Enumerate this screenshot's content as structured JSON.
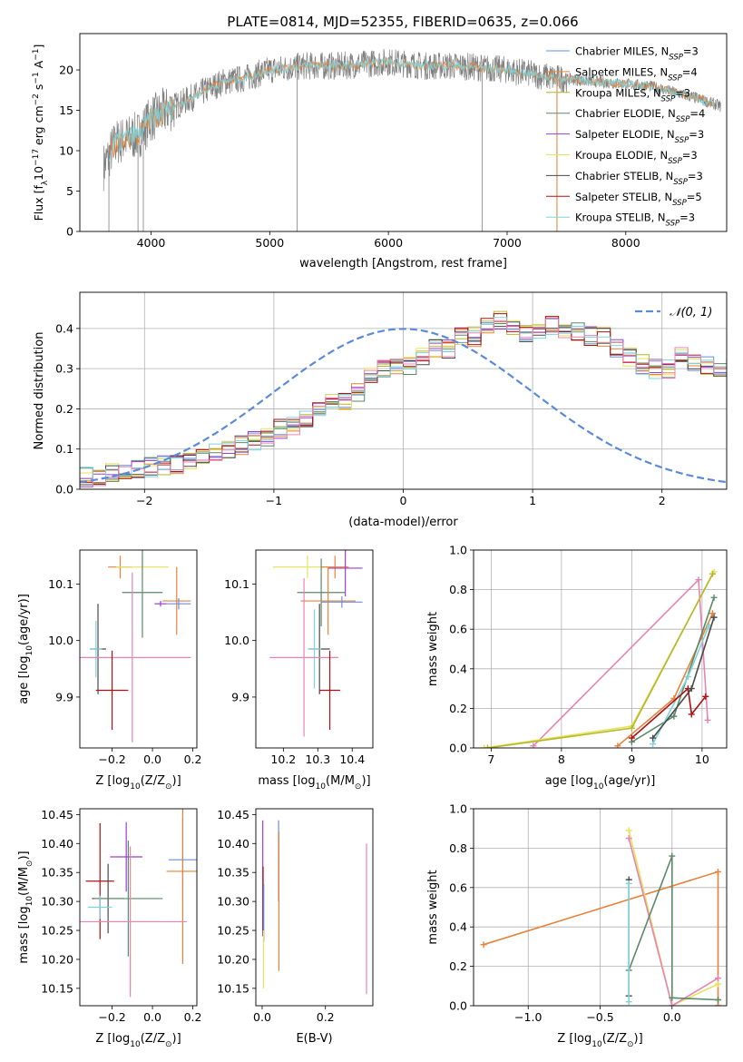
{
  "figure_title": "PLATE=0814, MJD=52355, FIBERID=0635, z=0.066",
  "colors": {
    "chabrier_miles": "#6b8fd6",
    "salpeter_miles": "#e8823a",
    "kroupa_miles": "#b6b62a",
    "chabrier_elodie": "#5a8a68",
    "salpeter_elodie": "#9b3fd0",
    "kroupa_elodie": "#e6e35a",
    "chabrier_stelib": "#4a4a4a",
    "salpeter_stelib": "#b01010",
    "kroupa_stelib": "#7ed3dc",
    "pink": "#e884b4",
    "data_spectrum": "#808080",
    "normal_curve": "#5b8bd8"
  },
  "chart_data": [
    {
      "id": "spectrum",
      "type": "line",
      "xlabel": "wavelength [Angstrom, rest frame]",
      "ylabel": "Flux [f_λ10^-17 erg cm^-2 s^-1 A^-1]",
      "xlim": [
        3400,
        8850
      ],
      "ylim": [
        0,
        24.5
      ],
      "xticks": [
        "4000",
        "5000",
        "6000",
        "7000",
        "8000"
      ],
      "yticks": [
        "0",
        "5",
        "10",
        "15",
        "20"
      ],
      "legend": [
        {
          "label": "Chabrier MILES, N",
          "sub": "SSP",
          "suffix": "=3",
          "color_key": "chabrier_miles"
        },
        {
          "label": "Salpeter MILES, N",
          "sub": "SSP",
          "suffix": "=4",
          "color_key": "salpeter_miles"
        },
        {
          "label": "Kroupa MILES, N",
          "sub": "SSP",
          "suffix": "=3",
          "color_key": "kroupa_miles"
        },
        {
          "label": "Chabrier ELODIE, N",
          "sub": "SSP",
          "suffix": "=4",
          "color_key": "chabrier_elodie"
        },
        {
          "label": "Salpeter ELODIE, N",
          "sub": "SSP",
          "suffix": "=3",
          "color_key": "salpeter_elodie"
        },
        {
          "label": "Kroupa ELODIE, N",
          "sub": "SSP",
          "suffix": "=3",
          "color_key": "kroupa_elodie"
        },
        {
          "label": "Chabrier STELIB, N",
          "sub": "SSP",
          "suffix": "=3",
          "color_key": "chabrier_stelib"
        },
        {
          "label": "Salpeter STELIB, N",
          "sub": "SSP",
          "suffix": "=5",
          "color_key": "salpeter_stelib"
        },
        {
          "label": "Kroupa STELIB, N",
          "sub": "SSP",
          "suffix": "=3",
          "color_key": "kroupa_stelib"
        }
      ],
      "continuum": [
        [
          3600,
          8
        ],
        [
          3700,
          11
        ],
        [
          3800,
          11.5
        ],
        [
          3900,
          12
        ],
        [
          4000,
          14
        ],
        [
          4200,
          15.5
        ],
        [
          4400,
          17
        ],
        [
          4600,
          18.5
        ],
        [
          4800,
          19
        ],
        [
          5000,
          20
        ],
        [
          5300,
          20.5
        ],
        [
          5600,
          20.5
        ],
        [
          6000,
          21
        ],
        [
          6300,
          20.5
        ],
        [
          6600,
          20.5
        ],
        [
          7000,
          20
        ],
        [
          7400,
          19
        ],
        [
          7800,
          18.5
        ],
        [
          8200,
          18
        ],
        [
          8600,
          16.5
        ],
        [
          8800,
          15.5
        ]
      ],
      "spikes": [
        [
          3645,
          0
        ],
        [
          3890,
          0
        ],
        [
          3935,
          0
        ],
        [
          5230,
          0
        ],
        [
          6790,
          0
        ],
        [
          7420,
          0
        ]
      ]
    },
    {
      "id": "residuals",
      "type": "histogram",
      "xlabel": "(data-model)/error",
      "ylabel": "Normed distribution",
      "xlim": [
        -2.5,
        2.5
      ],
      "ylim": [
        0,
        0.49
      ],
      "xticks": [
        "−2",
        "−1",
        "0",
        "1",
        "2"
      ],
      "yticks": [
        "0.0",
        "0.1",
        "0.2",
        "0.3",
        "0.4"
      ],
      "legend": [
        {
          "label": "𝒩(0, 1)",
          "color_key": "normal_curve"
        }
      ],
      "bin_width": 0.1,
      "base_hist": [
        0.03,
        0.03,
        0.035,
        0.04,
        0.04,
        0.05,
        0.055,
        0.06,
        0.06,
        0.07,
        0.08,
        0.09,
        0.1,
        0.11,
        0.12,
        0.13,
        0.15,
        0.16,
        0.18,
        0.2,
        0.22,
        0.24,
        0.26,
        0.28,
        0.3,
        0.31,
        0.32,
        0.33,
        0.35,
        0.37,
        0.38,
        0.4,
        0.41,
        0.42,
        0.4,
        0.39,
        0.4,
        0.41,
        0.4,
        0.39,
        0.38,
        0.36,
        0.35,
        0.33,
        0.31,
        0.3,
        0.31,
        0.33,
        0.32,
        0.31,
        0.3,
        0.29,
        0.27,
        0.25,
        0.23,
        0.2,
        0.18,
        0.17,
        0.15,
        0.13,
        0.12,
        0.1,
        0.09,
        0.08,
        0.07,
        0.06,
        0.05,
        0.05,
        0.04,
        0.04,
        0.035,
        0.03,
        0.03,
        0.03,
        0.03,
        0.03,
        0.03,
        0.03,
        0.03,
        0.03
      ]
    },
    {
      "id": "age_vs_Z",
      "type": "errorbar",
      "xlabel": "Z [log10(Z/Z⊙)]",
      "ylabel": "age [log10(age/yr)]",
      "xlim": [
        -0.36,
        0.22
      ],
      "ylim": [
        9.81,
        10.16
      ],
      "xticks": [
        "−0.2",
        "0.0",
        "0.2"
      ],
      "yticks": [
        "9.9",
        "10.0",
        "10.1"
      ],
      "points": [
        {
          "x": -0.16,
          "xerr": 0.06,
          "y": 10.13,
          "yerr": 0.02,
          "color_key": "salpeter_miles"
        },
        {
          "x": -0.05,
          "xerr": 0.13,
          "y": 10.13,
          "yerr": 0.02,
          "color_key": "kroupa_elodie"
        },
        {
          "x": -0.05,
          "xerr": 0.1,
          "y": 10.085,
          "yerr": 0.08,
          "color_key": "chabrier_elodie"
        },
        {
          "x": 0.12,
          "xerr": 0.07,
          "y": 10.07,
          "yerr": 0.06,
          "color_key": "salpeter_miles"
        },
        {
          "x": 0.13,
          "xerr": 0.06,
          "y": 10.065,
          "yerr": 0.01,
          "color_key": "chabrier_miles"
        },
        {
          "x": 0.04,
          "xerr": 0.03,
          "y": 10.065,
          "yerr": 0.005,
          "color_key": "salpeter_elodie"
        },
        {
          "x": -0.27,
          "xerr": 0.04,
          "y": 9.985,
          "yerr": 0.08,
          "color_key": "chabrier_stelib"
        },
        {
          "x": -0.28,
          "xerr": 0.03,
          "y": 9.985,
          "yerr": 0.05,
          "color_key": "kroupa_stelib"
        },
        {
          "x": -0.1,
          "xerr": 0.29,
          "y": 9.97,
          "yerr": 0.15,
          "color_key": "pink"
        },
        {
          "x": -0.2,
          "xerr": 0.08,
          "y": 9.912,
          "yerr": 0.07,
          "color_key": "salpeter_stelib"
        }
      ]
    },
    {
      "id": "age_vs_mass",
      "type": "errorbar",
      "xlabel": "mass [log10(M/M⊙)]",
      "ylabel": "",
      "xlim": [
        10.12,
        10.46
      ],
      "ylim": [
        9.81,
        10.16
      ],
      "xticks": [
        "10.2",
        "10.3",
        "10.4"
      ],
      "yticks": [
        "9.9",
        "10.0",
        "10.1"
      ],
      "points": [
        {
          "x": 10.27,
          "xerr": 0.1,
          "y": 10.13,
          "yerr": 0.02,
          "color_key": "kroupa_elodie"
        },
        {
          "x": 10.35,
          "xerr": 0.04,
          "y": 10.13,
          "yerr": 0.02,
          "color_key": "salpeter_miles"
        },
        {
          "x": 10.38,
          "xerr": 0.05,
          "y": 10.128,
          "yerr": 0.05,
          "color_key": "salpeter_elodie"
        },
        {
          "x": 10.31,
          "xerr": 0.07,
          "y": 10.085,
          "yerr": 0.06,
          "color_key": "chabrier_elodie"
        },
        {
          "x": 10.33,
          "xerr": 0.08,
          "y": 10.07,
          "yerr": 0.06,
          "color_key": "salpeter_miles"
        },
        {
          "x": 10.37,
          "xerr": 0.06,
          "y": 10.068,
          "yerr": 0.01,
          "color_key": "chabrier_miles"
        },
        {
          "x": 10.305,
          "xerr": 0.03,
          "y": 9.985,
          "yerr": 0.08,
          "color_key": "chabrier_stelib"
        },
        {
          "x": 10.29,
          "xerr": 0.02,
          "y": 9.985,
          "yerr": 0.07,
          "color_key": "kroupa_stelib"
        },
        {
          "x": 10.26,
          "xerr": 0.1,
          "y": 9.97,
          "yerr": 0.14,
          "color_key": "pink"
        },
        {
          "x": 10.335,
          "xerr": 0.03,
          "y": 9.912,
          "yerr": 0.07,
          "color_key": "salpeter_stelib"
        }
      ]
    },
    {
      "id": "mass_weight_vs_age",
      "type": "line",
      "xlabel": "age [log10(age/yr)]",
      "ylabel": "mass weight",
      "xlim": [
        6.75,
        10.35
      ],
      "ylim": [
        0,
        1
      ],
      "xticks": [
        "7",
        "8",
        "9",
        "10"
      ],
      "yticks": [
        "0.0",
        "0.2",
        "0.4",
        "0.6",
        "0.8",
        "1.0"
      ],
      "series": [
        {
          "color_key": "pink",
          "points": [
            [
              7.6,
              0.01
            ],
            [
              9.95,
              0.85
            ],
            [
              10.08,
              0.14
            ]
          ]
        },
        {
          "color_key": "kroupa_elodie",
          "points": [
            [
              6.9,
              0.0
            ],
            [
              9.0,
              0.11
            ],
            [
              10.17,
              0.89
            ]
          ]
        },
        {
          "color_key": "kroupa_miles",
          "points": [
            [
              6.95,
              0.0
            ],
            [
              9.0,
              0.1
            ],
            [
              10.15,
              0.88
            ]
          ]
        },
        {
          "color_key": "salpeter_miles",
          "points": [
            [
              8.8,
              0.01
            ],
            [
              9.6,
              0.25
            ],
            [
              10.15,
              0.68
            ]
          ]
        },
        {
          "color_key": "chabrier_elodie",
          "points": [
            [
              9.0,
              0.03
            ],
            [
              9.6,
              0.16
            ],
            [
              10.17,
              0.76
            ]
          ]
        },
        {
          "color_key": "kroupa_stelib",
          "points": [
            [
              9.3,
              0.02
            ],
            [
              9.8,
              0.36
            ],
            [
              10.1,
              0.62
            ]
          ]
        },
        {
          "color_key": "salpeter_stelib",
          "points": [
            [
              9.0,
              0.05
            ],
            [
              9.8,
              0.3
            ],
            [
              9.85,
              0.17
            ],
            [
              10.05,
              0.26
            ]
          ]
        },
        {
          "color_key": "chabrier_stelib",
          "points": [
            [
              9.3,
              0.05
            ],
            [
              9.85,
              0.3
            ],
            [
              10.17,
              0.66
            ]
          ]
        }
      ]
    },
    {
      "id": "mass_vs_Z",
      "type": "errorbar",
      "xlabel": "Z [log10(Z/Z⊙)]",
      "ylabel": "mass [log10(M/M⊙)]",
      "xlim": [
        -0.36,
        0.22
      ],
      "ylim": [
        10.12,
        10.46
      ],
      "xticks": [
        "−0.2",
        "0.0",
        "0.2"
      ],
      "yticks": [
        "10.15",
        "10.20",
        "10.25",
        "10.30",
        "10.35",
        "10.40",
        "10.45"
      ],
      "points": [
        {
          "x": -0.13,
          "xerr": 0.08,
          "y": 10.377,
          "yerr": 0.06,
          "color_key": "salpeter_elodie"
        },
        {
          "x": 0.15,
          "xerr": 0.07,
          "y": 10.372,
          "yerr": 0.07,
          "color_key": "chabrier_miles"
        },
        {
          "x": 0.15,
          "xerr": 0.08,
          "y": 10.352,
          "yerr": 0.16,
          "color_key": "salpeter_miles"
        },
        {
          "x": -0.26,
          "xerr": 0.07,
          "y": 10.335,
          "yerr": 0.1,
          "color_key": "salpeter_stelib"
        },
        {
          "x": -0.22,
          "xerr": 0.08,
          "y": 10.305,
          "yerr": 0.06,
          "color_key": "chabrier_stelib"
        },
        {
          "x": -0.12,
          "xerr": 0.17,
          "y": 10.305,
          "yerr": 0.1,
          "color_key": "chabrier_elodie"
        },
        {
          "x": -0.26,
          "xerr": 0.06,
          "y": 10.29,
          "yerr": 0.02,
          "color_key": "kroupa_stelib"
        },
        {
          "x": -0.11,
          "xerr": 0.16,
          "y": 10.265,
          "yerr": 0.12,
          "color_key": "kroupa_elodie"
        },
        {
          "x": -0.11,
          "xerr": 0.28,
          "y": 10.265,
          "yerr": 0.13,
          "color_key": "pink"
        }
      ]
    },
    {
      "id": "mass_vs_ebv",
      "type": "errorbar",
      "xlabel": "E(B-V)",
      "ylabel": "",
      "xlim": [
        -0.02,
        0.35
      ],
      "ylim": [
        10.12,
        10.46
      ],
      "xticks": [
        "0.0",
        "0.2"
      ],
      "yticks": [
        "10.15",
        "10.20",
        "10.25",
        "10.30",
        "10.35",
        "10.40",
        "10.45"
      ],
      "points": [
        {
          "x": 0.002,
          "xerr": 0.0,
          "y": 10.34,
          "yerr": 0.1,
          "color_key": "salpeter_elodie"
        },
        {
          "x": 0.003,
          "xerr": 0.0,
          "y": 10.3,
          "yerr": 0.06,
          "color_key": "salpeter_stelib"
        },
        {
          "x": 0.005,
          "xerr": 0.0,
          "y": 10.28,
          "yerr": 0.05,
          "color_key": "chabrier_miles"
        },
        {
          "x": 0.004,
          "xerr": 0.0,
          "y": 10.2,
          "yerr": 0.05,
          "color_key": "kroupa_elodie"
        },
        {
          "x": 0.052,
          "xerr": 0.0,
          "y": 10.37,
          "yerr": 0.07,
          "color_key": "chabrier_miles"
        },
        {
          "x": 0.053,
          "xerr": 0.0,
          "y": 10.3,
          "yerr": 0.12,
          "color_key": "salpeter_miles"
        },
        {
          "x": 0.33,
          "xerr": 0.0,
          "y": 10.27,
          "yerr": 0.13,
          "color_key": "pink"
        }
      ]
    },
    {
      "id": "mass_weight_vs_Z",
      "type": "line",
      "xlabel": "Z [log10(Z/Z⊙)]",
      "ylabel": "mass weight",
      "xlim": [
        -1.38,
        0.38
      ],
      "ylim": [
        0,
        1
      ],
      "xticks": [
        "−1.0",
        "−0.5",
        "0.0"
      ],
      "yticks": [
        "0.0",
        "0.2",
        "0.4",
        "0.6",
        "0.8",
        "1.0"
      ],
      "series": [
        {
          "color_key": "salpeter_miles",
          "points": [
            [
              -1.31,
              0.31
            ],
            [
              0.32,
              0.68
            ],
            [
              0.32,
              0.0
            ]
          ]
        },
        {
          "color_key": "kroupa_elodie",
          "points": [
            [
              -0.3,
              0.89
            ],
            [
              0.0,
              0.0
            ],
            [
              0.32,
              0.11
            ]
          ]
        },
        {
          "color_key": "pink",
          "points": [
            [
              -0.3,
              0.85
            ],
            [
              0.0,
              0.0
            ],
            [
              0.32,
              0.14
            ]
          ]
        },
        {
          "color_key": "chabrier_elodie",
          "points": [
            [
              -0.3,
              0.18
            ],
            [
              0.0,
              0.76
            ],
            [
              0.0,
              0.04
            ],
            [
              0.32,
              0.03
            ]
          ]
        },
        {
          "color_key": "chabrier_stelib",
          "points": [
            [
              -0.3,
              0.05
            ],
            [
              -0.3,
              0.64
            ]
          ]
        },
        {
          "color_key": "kroupa_stelib",
          "points": [
            [
              -0.3,
              0.02
            ],
            [
              -0.3,
              0.62
            ]
          ]
        }
      ]
    }
  ]
}
